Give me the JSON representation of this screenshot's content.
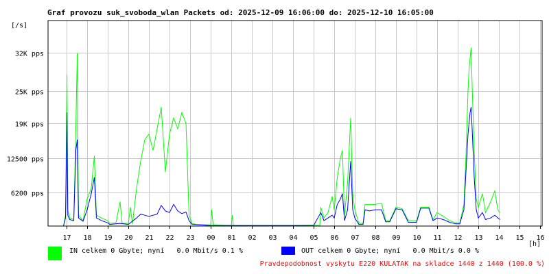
{
  "header": {
    "title": "Graf provozu suk_svoboda_wlan Packets od: 2025-12-09 16:06:00 do: 2025-12-10 16:05:00",
    "unit_label": "[/s]",
    "x_unit_label": "[h]"
  },
  "colors": {
    "in": "#00ff00",
    "out": "#0000ff",
    "grid": "#c8c8c8",
    "axis": "#000000",
    "probability": "#ff0000"
  },
  "legend": {
    "in_text": "IN celkem 0 Gbyte; nyní   0.0 Mbit/s 0.1 %",
    "out_text": "OUT celkem 0 Gbyte; nyní   0.0 Mbit/s 0.0 %"
  },
  "footer": {
    "probability_text": "Pravdepodobnost vyskytu E220 KULATAK na skladce 1440 z 1440 (100.0 %)"
  },
  "chart_data": {
    "type": "line",
    "title": "Graf provozu suk_svoboda_wlan Packets od: 2025-12-09 16:06:00 do: 2025-12-10 16:05:00",
    "ylabel": "[/s]",
    "xlabel": "[h]",
    "ylim": [
      0,
      38000
    ],
    "y_ticks": [
      {
        "value": 6200,
        "label": "6200 pps"
      },
      {
        "value": 12500,
        "label": "12500 pps"
      },
      {
        "value": 19000,
        "label": "19K pps"
      },
      {
        "value": 25000,
        "label": "25K pps"
      },
      {
        "value": 32000,
        "label": "32K pps"
      }
    ],
    "x_ticks": [
      "17",
      "18",
      "19",
      "20",
      "21",
      "22",
      "23",
      "00",
      "01",
      "02",
      "03",
      "04",
      "05",
      "06",
      "07",
      "08",
      "09",
      "10",
      "11",
      "12",
      "13",
      "14",
      "15",
      "16"
    ],
    "grid": true,
    "series": [
      {
        "name": "IN",
        "color": "#00ff00",
        "points": [
          [
            16.1,
            0
          ],
          [
            16.85,
            0
          ],
          [
            16.95,
            2000
          ],
          [
            17.02,
            28000
          ],
          [
            17.06,
            3000
          ],
          [
            17.15,
            1500
          ],
          [
            17.35,
            1200
          ],
          [
            17.45,
            18000
          ],
          [
            17.52,
            32000
          ],
          [
            17.58,
            2000
          ],
          [
            17.8,
            1000
          ],
          [
            18.0,
            5000
          ],
          [
            18.2,
            7000
          ],
          [
            18.35,
            13000
          ],
          [
            18.45,
            2000
          ],
          [
            18.7,
            1500
          ],
          [
            19.0,
            1000
          ],
          [
            19.1,
            500
          ],
          [
            19.4,
            600
          ],
          [
            19.6,
            4500
          ],
          [
            19.7,
            500
          ],
          [
            20.0,
            500
          ],
          [
            20.1,
            3500
          ],
          [
            20.2,
            400
          ],
          [
            20.4,
            7000
          ],
          [
            20.6,
            12000
          ],
          [
            20.8,
            16000
          ],
          [
            21.0,
            17000
          ],
          [
            21.2,
            14000
          ],
          [
            21.4,
            18000
          ],
          [
            21.6,
            22000
          ],
          [
            21.8,
            10000
          ],
          [
            22.0,
            17000
          ],
          [
            22.2,
            20000
          ],
          [
            22.4,
            18000
          ],
          [
            22.6,
            21000
          ],
          [
            22.8,
            19000
          ],
          [
            22.95,
            2000
          ],
          [
            23.1,
            500
          ],
          [
            23.3,
            300
          ],
          [
            24.0,
            200
          ],
          [
            24.05,
            3000
          ],
          [
            24.12,
            200
          ],
          [
            25.0,
            100
          ],
          [
            25.05,
            2000
          ],
          [
            25.1,
            100
          ],
          [
            26.0,
            100
          ],
          [
            28.0,
            100
          ],
          [
            29.0,
            150
          ],
          [
            29.3,
            100
          ],
          [
            29.35,
            3500
          ],
          [
            29.5,
            1500
          ],
          [
            29.7,
            2500
          ],
          [
            29.9,
            5500
          ],
          [
            30.0,
            3000
          ],
          [
            30.15,
            9000
          ],
          [
            30.3,
            12500
          ],
          [
            30.4,
            14000
          ],
          [
            30.5,
            2000
          ],
          [
            30.65,
            8000
          ],
          [
            30.8,
            20000
          ],
          [
            30.9,
            6000
          ],
          [
            31.0,
            3000
          ],
          [
            31.2,
            500
          ],
          [
            31.4,
            500
          ],
          [
            31.5,
            4000
          ],
          [
            31.7,
            4000
          ],
          [
            32.0,
            4000
          ],
          [
            32.3,
            4200
          ],
          [
            32.5,
            1000
          ],
          [
            32.7,
            1000
          ],
          [
            33.0,
            3500
          ],
          [
            33.3,
            3200
          ],
          [
            33.6,
            1000
          ],
          [
            34.0,
            1000
          ],
          [
            34.2,
            3500
          ],
          [
            34.6,
            3500
          ],
          [
            34.8,
            1200
          ],
          [
            35.0,
            2500
          ],
          [
            35.3,
            1800
          ],
          [
            35.6,
            1000
          ],
          [
            35.9,
            600
          ],
          [
            36.1,
            600
          ],
          [
            36.3,
            4000
          ],
          [
            36.4,
            13000
          ],
          [
            36.5,
            25000
          ],
          [
            36.55,
            29000
          ],
          [
            36.6,
            31000
          ],
          [
            36.65,
            33000
          ],
          [
            36.7,
            26000
          ],
          [
            36.8,
            14000
          ],
          [
            36.9,
            5000
          ],
          [
            37.0,
            3500
          ],
          [
            37.2,
            6000
          ],
          [
            37.35,
            2500
          ],
          [
            37.6,
            4500
          ],
          [
            37.8,
            6500
          ],
          [
            37.95,
            3000
          ],
          [
            38.05,
            2500
          ]
        ]
      },
      {
        "name": "OUT",
        "color": "#0000ff",
        "points": [
          [
            16.1,
            0
          ],
          [
            16.85,
            0
          ],
          [
            16.95,
            1500
          ],
          [
            17.02,
            21000
          ],
          [
            17.06,
            2000
          ],
          [
            17.15,
            1200
          ],
          [
            17.35,
            1000
          ],
          [
            17.45,
            14000
          ],
          [
            17.52,
            16000
          ],
          [
            17.58,
            1500
          ],
          [
            17.8,
            900
          ],
          [
            18.0,
            3000
          ],
          [
            18.2,
            6000
          ],
          [
            18.35,
            9000
          ],
          [
            18.45,
            1500
          ],
          [
            18.7,
            1000
          ],
          [
            19.0,
            600
          ],
          [
            19.1,
            300
          ],
          [
            19.6,
            500
          ],
          [
            20.0,
            300
          ],
          [
            20.4,
            1500
          ],
          [
            20.6,
            2200
          ],
          [
            20.8,
            2000
          ],
          [
            21.0,
            1800
          ],
          [
            21.4,
            2200
          ],
          [
            21.6,
            3800
          ],
          [
            21.8,
            2800
          ],
          [
            22.0,
            2500
          ],
          [
            22.2,
            4000
          ],
          [
            22.4,
            2800
          ],
          [
            22.6,
            2300
          ],
          [
            22.8,
            2600
          ],
          [
            22.95,
            1000
          ],
          [
            23.1,
            300
          ],
          [
            24.0,
            100
          ],
          [
            29.0,
            100
          ],
          [
            29.35,
            2500
          ],
          [
            29.5,
            1000
          ],
          [
            29.7,
            1500
          ],
          [
            29.9,
            2000
          ],
          [
            30.0,
            1500
          ],
          [
            30.15,
            4000
          ],
          [
            30.3,
            5000
          ],
          [
            30.4,
            6000
          ],
          [
            30.5,
            1000
          ],
          [
            30.65,
            3000
          ],
          [
            30.8,
            12000
          ],
          [
            30.9,
            3000
          ],
          [
            31.0,
            1500
          ],
          [
            31.2,
            300
          ],
          [
            31.4,
            300
          ],
          [
            31.5,
            3000
          ],
          [
            31.7,
            2800
          ],
          [
            32.0,
            3000
          ],
          [
            32.3,
            3000
          ],
          [
            32.5,
            800
          ],
          [
            32.7,
            800
          ],
          [
            33.0,
            3200
          ],
          [
            33.3,
            3000
          ],
          [
            33.6,
            700
          ],
          [
            34.0,
            700
          ],
          [
            34.2,
            3300
          ],
          [
            34.6,
            3300
          ],
          [
            34.8,
            1000
          ],
          [
            35.0,
            1500
          ],
          [
            35.3,
            1200
          ],
          [
            35.6,
            700
          ],
          [
            35.9,
            400
          ],
          [
            36.1,
            400
          ],
          [
            36.3,
            3000
          ],
          [
            36.4,
            10000
          ],
          [
            36.5,
            17000
          ],
          [
            36.55,
            19000
          ],
          [
            36.6,
            21000
          ],
          [
            36.65,
            22000
          ],
          [
            36.7,
            18000
          ],
          [
            36.8,
            9000
          ],
          [
            36.9,
            3000
          ],
          [
            37.0,
            1500
          ],
          [
            37.2,
            2500
          ],
          [
            37.35,
            1200
          ],
          [
            37.6,
            1500
          ],
          [
            37.8,
            2000
          ],
          [
            37.95,
            1500
          ],
          [
            38.05,
            1200
          ]
        ]
      }
    ]
  }
}
